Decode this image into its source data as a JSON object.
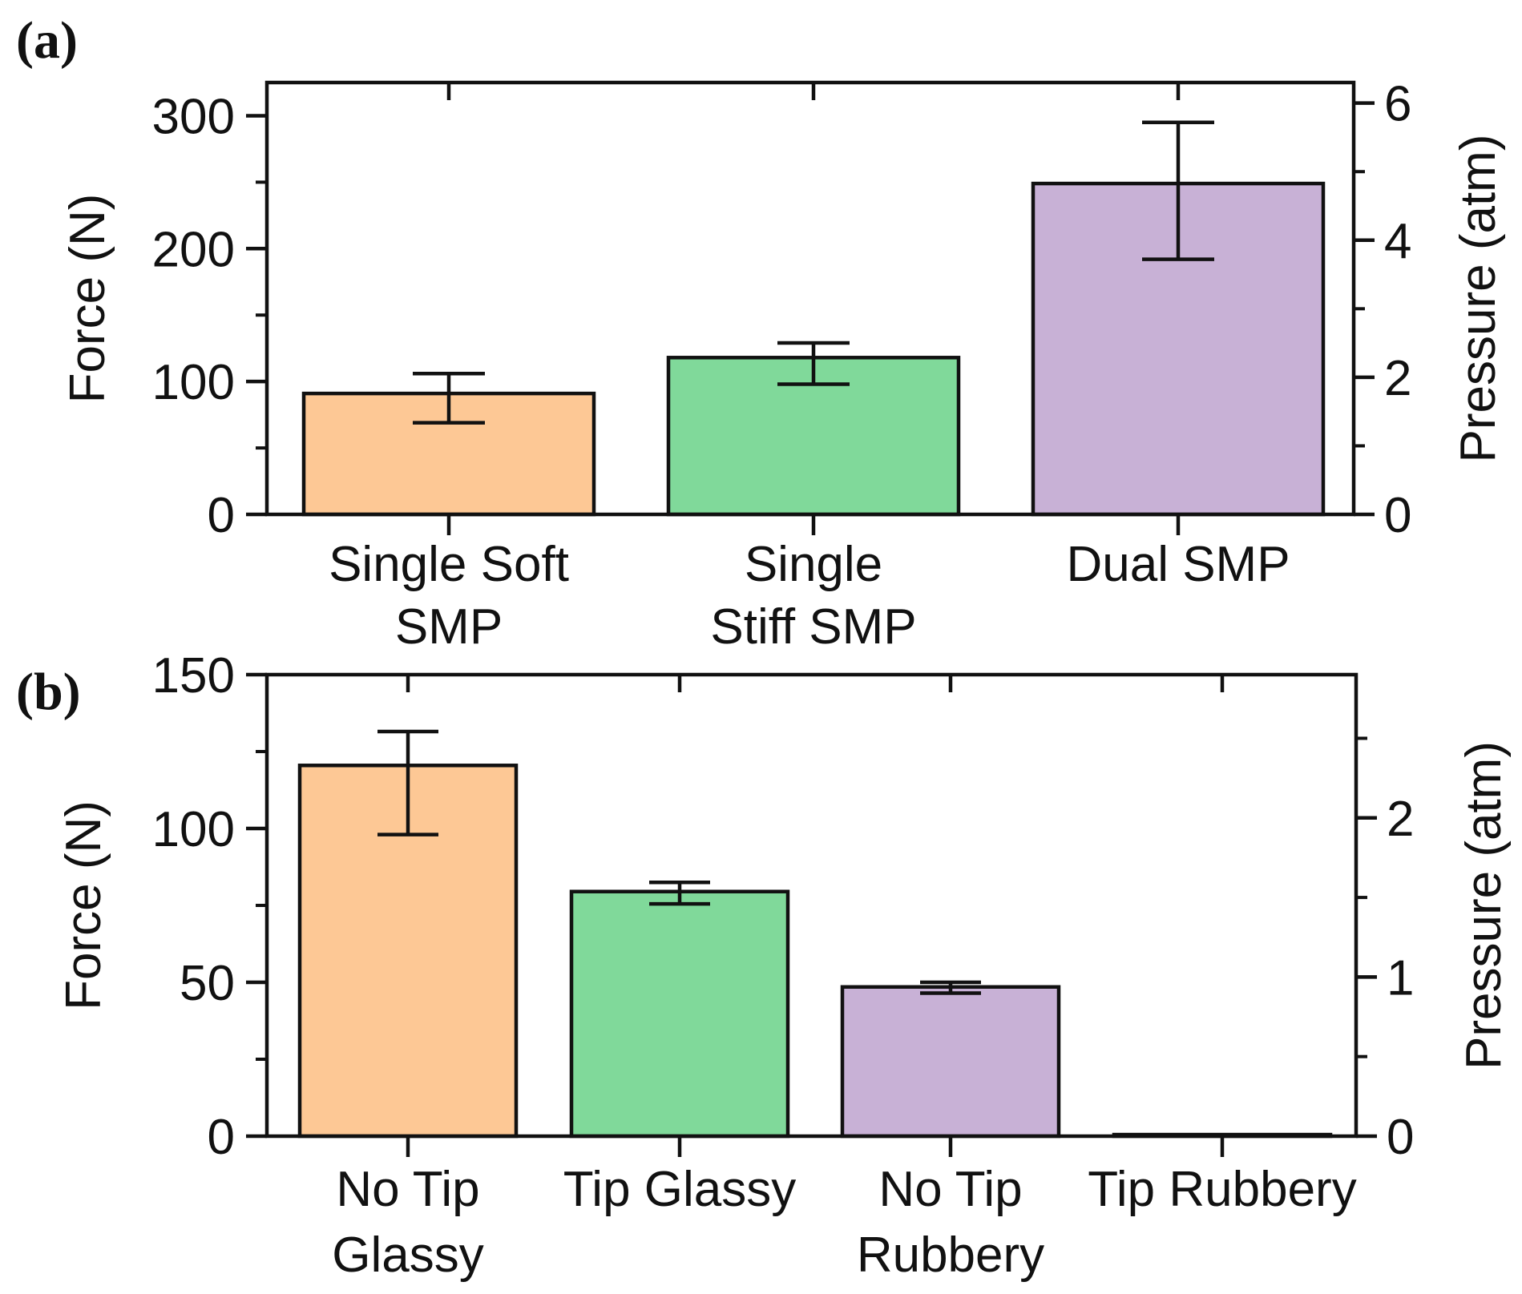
{
  "chart_data": [
    {
      "panel": "(a)",
      "type": "bar",
      "categories": [
        [
          "Single Soft",
          "SMP"
        ],
        [
          "Single",
          "Stiff SMP"
        ],
        [
          "Dual SMP"
        ]
      ],
      "values": [
        91,
        118,
        249
      ],
      "error_low": [
        69,
        98,
        192
      ],
      "error_high": [
        106,
        129,
        295
      ],
      "colors": [
        "#FDC895",
        "#80D99A",
        "#C8B1D6"
      ],
      "ylabel": "Force (N)",
      "ylim": [
        0,
        325
      ],
      "yticks": [
        0,
        100,
        200,
        300
      ],
      "yticks_minor": [
        50,
        150,
        250
      ],
      "ylabel_right": "Pressure (atm)",
      "ylim_right": [
        0,
        6.3
      ],
      "yticks_right": [
        0,
        2,
        4,
        6
      ],
      "yticks_right_minor": [
        1,
        3,
        5
      ]
    },
    {
      "panel": "(b)",
      "type": "bar",
      "categories": [
        [
          "No Tip",
          "Glassy"
        ],
        [
          "Tip Glassy"
        ],
        [
          "No Tip",
          "Rubbery"
        ],
        [
          "Tip Rubbery"
        ]
      ],
      "values": [
        120.5,
        79.5,
        48.5,
        0.5
      ],
      "error_low": [
        98,
        75.5,
        46.5,
        0.5
      ],
      "error_high": [
        131.5,
        82.5,
        50,
        0.5
      ],
      "colors": [
        "#FDC895",
        "#80D99A",
        "#C8B1D6",
        "#C8B1D6"
      ],
      "ylabel": "Force (N)",
      "ylim": [
        0,
        150
      ],
      "yticks": [
        0,
        50,
        100,
        150
      ],
      "yticks_minor": [
        25,
        75,
        125
      ],
      "ylabel_right": "Pressure (atm)",
      "ylim_right": [
        0,
        2.9
      ],
      "yticks_right": [
        0,
        1,
        2
      ],
      "yticks_right_minor": [
        0.5,
        1.5,
        2.5
      ]
    }
  ]
}
